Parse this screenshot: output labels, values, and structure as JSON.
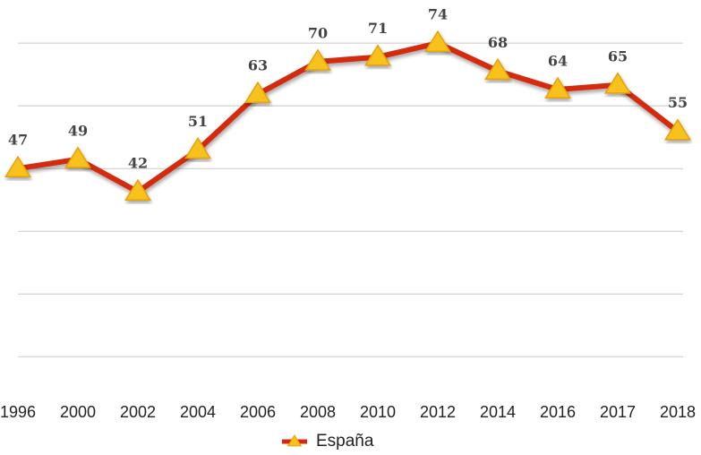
{
  "chart_data": {
    "type": "line",
    "categories": [
      "1996",
      "2000",
      "2002",
      "2004",
      "2006",
      "2008",
      "2010",
      "2012",
      "2014",
      "2016",
      "2017",
      "2018"
    ],
    "series": [
      {
        "name": "España",
        "color": "#d42a0c",
        "marker_color": "#f7c21a",
        "values": [
          47,
          49,
          42,
          51,
          63,
          70,
          71,
          74,
          68,
          64,
          65,
          55
        ]
      }
    ],
    "ylim": [
      0,
      80
    ],
    "yticks": [
      6.5,
      20,
      33.5,
      47,
      60.5,
      74
    ],
    "grid": true,
    "legend": "bottom"
  }
}
